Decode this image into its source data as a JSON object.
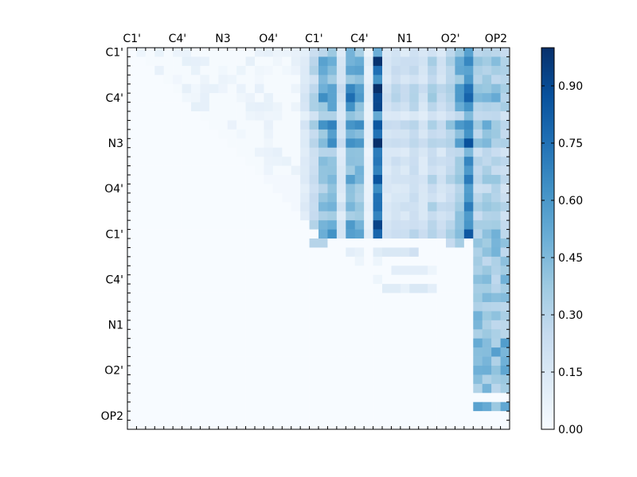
{
  "chart_data": {
    "type": "heatmap",
    "title": "",
    "xlabel": "",
    "ylabel": "",
    "grid": false,
    "legend": "none",
    "colormap": "Blues",
    "colorscale_stops": [
      "#f7fbff",
      "#deebf7",
      "#c6dbef",
      "#9ecae1",
      "#6baed6",
      "#4292c6",
      "#2171b5",
      "#08519c",
      "#08306b"
    ],
    "x_tick_labels": [
      "C1'",
      "C4'",
      "N3",
      "O4'",
      "C1'",
      "C4'",
      "N1",
      "O2'",
      "OP2"
    ],
    "y_tick_labels": [
      "C1'",
      "C4'",
      "N3",
      "O4'",
      "C1'",
      "C4'",
      "N1",
      "O2'",
      "OP2"
    ],
    "n_rows": 42,
    "n_cols": 42,
    "vmin": 0.0,
    "vmax": 1.0,
    "values_note": "",
    "column_intensity": [
      0.02,
      0.04,
      0.06,
      0.03,
      0.04,
      0.05,
      0.05,
      0.04,
      0.05,
      0.05,
      0.06,
      0.05,
      0.06,
      0.05,
      0.04,
      0.06,
      0.08,
      0.07,
      0.08,
      0.15,
      0.3,
      0.5,
      0.55,
      0.2,
      0.6,
      0.55,
      0.1,
      0.9,
      0.2,
      0.25,
      0.22,
      0.28,
      0.2,
      0.35,
      0.25,
      0.35,
      0.5,
      0.75,
      0.35,
      0.42,
      0.4,
      0.32
    ],
    "special_cells": [
      {
        "row": 21,
        "cols": [
          20,
          21
        ],
        "value": 0.3
      },
      {
        "row": 21,
        "cols": [
          35
        ],
        "value": 0.25
      },
      {
        "row": 21,
        "cols": [
          36
        ],
        "value": 0.35
      },
      {
        "row": 22,
        "cols": [
          24
        ],
        "value": 0.1
      },
      {
        "row": 22,
        "cols": [
          25
        ],
        "value": 0.08
      },
      {
        "row": 22,
        "cols": [
          27
        ],
        "value": 0.12
      },
      {
        "row": 22,
        "cols": [
          28,
          29,
          30
        ],
        "value": 0.15
      },
      {
        "row": 22,
        "cols": [
          31
        ],
        "value": 0.2
      },
      {
        "row": 23,
        "cols": [
          25
        ],
        "value": 0.05
      },
      {
        "row": 23,
        "cols": [
          27
        ],
        "value": 0.05
      },
      {
        "row": 24,
        "cols": [
          29,
          30,
          31,
          32
        ],
        "value": 0.1
      },
      {
        "row": 24,
        "cols": [
          33
        ],
        "value": 0.05
      },
      {
        "row": 25,
        "cols": [
          27
        ],
        "value": 0.05
      },
      {
        "row": 26,
        "cols": [
          28,
          29
        ],
        "value": 0.12
      },
      {
        "row": 26,
        "cols": [
          30
        ],
        "value": 0.08
      },
      {
        "row": 26,
        "cols": [
          31,
          32
        ],
        "value": 0.15
      },
      {
        "row": 26,
        "cols": [
          33
        ],
        "value": 0.1
      }
    ],
    "block_cells": [
      {
        "rows": [
          21,
          37
        ],
        "cols": [
          38,
          41
        ],
        "value": 0.38
      },
      {
        "rows": [
          32,
          36
        ],
        "cols": [
          38,
          41
        ],
        "value": 0.45
      },
      {
        "rows": [
          39,
          39
        ],
        "cols": [
          38,
          41
        ],
        "value": 0.5
      }
    ],
    "colorbar": {
      "ticks": [
        0.0,
        0.15,
        0.3,
        0.45,
        0.6,
        0.75,
        0.9
      ],
      "tick_labels": [
        "0.00",
        "0.15",
        "0.30",
        "0.45",
        "0.60",
        "0.75",
        "0.90"
      ]
    }
  }
}
